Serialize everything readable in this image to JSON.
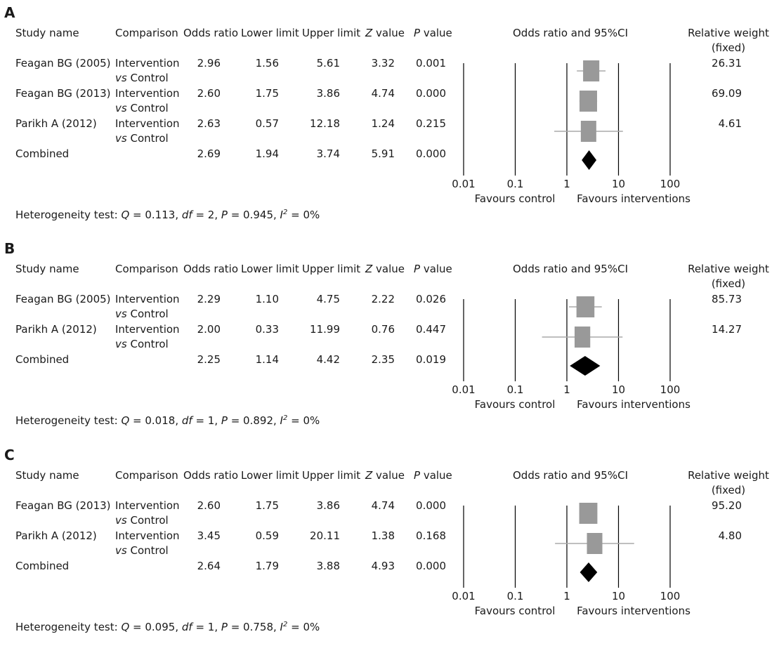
{
  "headers": {
    "study": "Study name",
    "comparison": "Comparison",
    "odds_ratio": "Odds ratio",
    "lower": "Lower limit",
    "upper": "Upper limit",
    "z_italic": "Z",
    "z_rest": " value",
    "p_italic": "P",
    "p_rest": " value",
    "plot": "Odds ratio and 95%CI",
    "weight_line1": "Relative weight",
    "weight_line2": "(fixed)"
  },
  "axis": {
    "ticks": [
      "0.01",
      "0.1",
      "1",
      "10",
      "100"
    ],
    "favours_left": "Favours control",
    "favours_right": "Favours interventions"
  },
  "colors": {
    "study_box": "#999999",
    "combined": "#000000",
    "gridline": "#000000",
    "ci_line": "#aaaaaa"
  },
  "chart_data": [
    {
      "type": "forest",
      "panel": "A",
      "xscale": "log",
      "xlim": [
        0.01,
        100
      ],
      "studies": [
        {
          "name": "Feagan BG (2005)",
          "comparison_line1": "Intervention",
          "comparison_italic": "vs",
          "comparison_rest": " Control",
          "or": "2.96",
          "lower": "1.56",
          "upper": "5.61",
          "z": "3.32",
          "p": "0.001",
          "weight": "26.31"
        },
        {
          "name": "Feagan BG (2013)",
          "comparison_line1": "Intervention",
          "comparison_italic": "vs",
          "comparison_rest": " Control",
          "or": "2.60",
          "lower": "1.75",
          "upper": "3.86",
          "z": "4.74",
          "p": "0.000",
          "weight": "69.09"
        },
        {
          "name": "Parikh A (2012)",
          "comparison_line1": "Intervention",
          "comparison_italic": "vs",
          "comparison_rest": " Control",
          "or": "2.63",
          "lower": "0.57",
          "upper": "12.18",
          "z": "1.24",
          "p": "0.215",
          "weight": "4.61"
        }
      ],
      "combined": {
        "name": "Combined",
        "or": "2.69",
        "lower": "1.94",
        "upper": "3.74",
        "z": "5.91",
        "p": "0.000"
      },
      "heterogeneity": {
        "prefix": "Heterogeneity test: ",
        "q": "0.113",
        "df": "2",
        "p": "0.945",
        "i2": "0%"
      }
    },
    {
      "type": "forest",
      "panel": "B",
      "xscale": "log",
      "xlim": [
        0.01,
        100
      ],
      "studies": [
        {
          "name": "Feagan BG (2005)",
          "comparison_line1": "Intervention",
          "comparison_italic": "vs",
          "comparison_rest": " Control",
          "or": "2.29",
          "lower": "1.10",
          "upper": "4.75",
          "z": "2.22",
          "p": "0.026",
          "weight": "85.73"
        },
        {
          "name": "Parikh A (2012)",
          "comparison_line1": "Intervention",
          "comparison_italic": "vs",
          "comparison_rest": " Control",
          "or": "2.00",
          "lower": "0.33",
          "upper": "11.99",
          "z": "0.76",
          "p": "0.447",
          "weight": "14.27"
        }
      ],
      "combined": {
        "name": "Combined",
        "or": "2.25",
        "lower": "1.14",
        "upper": "4.42",
        "z": "2.35",
        "p": "0.019"
      },
      "heterogeneity": {
        "prefix": "Heterogeneity test: ",
        "q": "0.018",
        "df": "1",
        "p": "0.892",
        "i2": "0%"
      }
    },
    {
      "type": "forest",
      "panel": "C",
      "xscale": "log",
      "xlim": [
        0.01,
        100
      ],
      "studies": [
        {
          "name": "Feagan BG (2013)",
          "comparison_line1": "Intervention",
          "comparison_italic": "vs",
          "comparison_rest": " Control",
          "or": "2.60",
          "lower": "1.75",
          "upper": "3.86",
          "z": "4.74",
          "p": "0.000",
          "weight": "95.20"
        },
        {
          "name": "Parikh A (2012)",
          "comparison_line1": "Intervention",
          "comparison_italic": "vs",
          "comparison_rest": " Control",
          "or": "3.45",
          "lower": "0.59",
          "upper": "20.11",
          "z": "1.38",
          "p": "0.168",
          "weight": "4.80"
        }
      ],
      "combined": {
        "name": "Combined",
        "or": "2.64",
        "lower": "1.79",
        "upper": "3.88",
        "z": "4.93",
        "p": "0.000"
      },
      "heterogeneity": {
        "prefix": "Heterogeneity test: ",
        "q": "0.095",
        "df": "1",
        "p": "0.758",
        "i2": "0%"
      }
    }
  ]
}
